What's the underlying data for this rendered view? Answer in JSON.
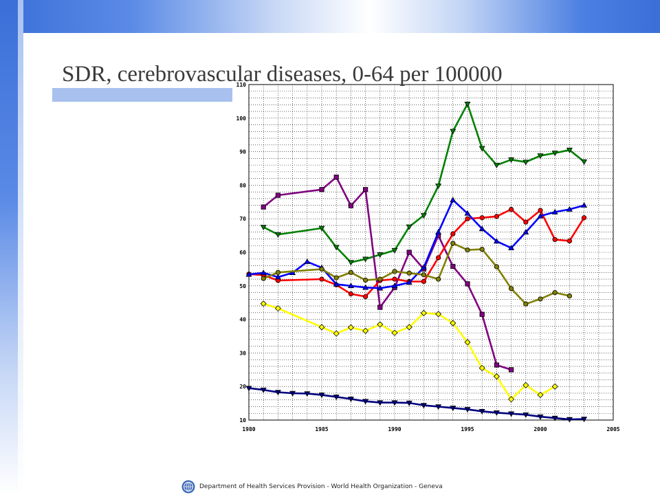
{
  "slide": {
    "title": "SDR, cerebrovascular  diseases, 0-64 per 100000",
    "footer": "Department of Health Services Provision - World Health Organization - Geneva",
    "logo_icon": "who-emblem-icon"
  },
  "chart_data": {
    "type": "line",
    "title": "",
    "xlabel": "",
    "ylabel": "",
    "xlim": [
      1980,
      2005
    ],
    "ylim": [
      10,
      110
    ],
    "x_ticks": [
      1980,
      1985,
      1990,
      1995,
      2000,
      2005
    ],
    "y_ticks": [
      10,
      20,
      30,
      40,
      50,
      60,
      70,
      80,
      90,
      100,
      110
    ],
    "grid": true,
    "legend": "none",
    "series": [
      {
        "color": "#008000",
        "marker": "triangle-down",
        "points": [
          [
            1981,
            67.5
          ],
          [
            1982,
            65.3
          ],
          [
            1985,
            67.2
          ],
          [
            1986,
            61.5
          ],
          [
            1987,
            57.0
          ],
          [
            1988,
            58.0
          ],
          [
            1989,
            59.3
          ],
          [
            1990,
            60.6
          ],
          [
            1991,
            67.6
          ],
          [
            1992,
            71.0
          ],
          [
            1993,
            79.8
          ],
          [
            1994,
            96.1
          ],
          [
            1995,
            104.2
          ],
          [
            1996,
            91.0
          ],
          [
            1997,
            86.0
          ],
          [
            1998,
            87.6
          ],
          [
            1999,
            86.9
          ],
          [
            2000,
            88.8
          ],
          [
            2001,
            89.6
          ],
          [
            2002,
            90.5
          ],
          [
            2003,
            87.0
          ]
        ]
      },
      {
        "color": "#800080",
        "marker": "square",
        "points": [
          [
            1981,
            73.5
          ],
          [
            1982,
            77.0
          ],
          [
            1985,
            78.7
          ],
          [
            1986,
            82.4
          ],
          [
            1987,
            73.9
          ],
          [
            1988,
            78.7
          ],
          [
            1989,
            43.6
          ],
          [
            1990,
            49.5
          ],
          [
            1991,
            60.0
          ],
          [
            1992,
            55.0
          ],
          [
            1993,
            65.0
          ],
          [
            1994,
            55.8
          ],
          [
            1995,
            50.6
          ],
          [
            1996,
            41.5
          ],
          [
            1997,
            26.4
          ],
          [
            1998,
            25.0
          ]
        ]
      },
      {
        "color": "#ff0000",
        "marker": "circle",
        "points": [
          [
            1980,
            53.5
          ],
          [
            1981,
            53.2
          ],
          [
            1982,
            51.6
          ],
          [
            1985,
            52.0
          ],
          [
            1986,
            50.3
          ],
          [
            1987,
            47.6
          ],
          [
            1988,
            46.8
          ],
          [
            1989,
            51.6
          ],
          [
            1990,
            52.0
          ],
          [
            1991,
            51.3
          ],
          [
            1992,
            51.3
          ],
          [
            1993,
            58.4
          ],
          [
            1994,
            65.5
          ],
          [
            1995,
            70.0
          ],
          [
            1996,
            70.3
          ],
          [
            1997,
            70.7
          ],
          [
            1998,
            72.8
          ],
          [
            1999,
            69.0
          ],
          [
            2000,
            72.5
          ],
          [
            2001,
            63.8
          ],
          [
            2002,
            63.4
          ],
          [
            2003,
            70.3
          ]
        ]
      },
      {
        "color": "#0000ff",
        "marker": "triangle-up",
        "points": [
          [
            1980,
            53.4
          ],
          [
            1981,
            53.9
          ],
          [
            1982,
            52.6
          ],
          [
            1983,
            53.9
          ],
          [
            1984,
            57.2
          ],
          [
            1985,
            55.4
          ],
          [
            1986,
            50.5
          ],
          [
            1987,
            50.0
          ],
          [
            1988,
            49.5
          ],
          [
            1989,
            49.3
          ],
          [
            1990,
            50.0
          ],
          [
            1991,
            51.0
          ],
          [
            1992,
            55.5
          ],
          [
            1993,
            66.0
          ],
          [
            1994,
            75.6
          ],
          [
            1995,
            71.6
          ],
          [
            1996,
            67.0
          ],
          [
            1997,
            63.3
          ],
          [
            1998,
            61.3
          ],
          [
            1999,
            66.0
          ],
          [
            2000,
            70.8
          ],
          [
            2001,
            72.0
          ],
          [
            2002,
            72.8
          ],
          [
            2003,
            74.0
          ]
        ]
      },
      {
        "color": "#808000",
        "marker": "circle",
        "points": [
          [
            1981,
            52.2
          ],
          [
            1982,
            54.0
          ],
          [
            1985,
            55.0
          ],
          [
            1986,
            52.4
          ],
          [
            1987,
            54.0
          ],
          [
            1988,
            51.7
          ],
          [
            1989,
            52.0
          ],
          [
            1990,
            54.3
          ],
          [
            1991,
            53.8
          ],
          [
            1992,
            53.3
          ],
          [
            1993,
            52.0
          ],
          [
            1994,
            62.7
          ],
          [
            1995,
            60.7
          ],
          [
            1996,
            60.9
          ],
          [
            1997,
            55.7
          ],
          [
            1998,
            49.2
          ],
          [
            1999,
            44.6
          ],
          [
            2000,
            46.1
          ],
          [
            2001,
            48.0
          ],
          [
            2002,
            47.0
          ]
        ]
      },
      {
        "color": "#ffff00",
        "marker": "diamond",
        "points": [
          [
            1981,
            44.7
          ],
          [
            1982,
            43.3
          ],
          [
            1985,
            37.7
          ],
          [
            1986,
            35.8
          ],
          [
            1987,
            37.6
          ],
          [
            1988,
            36.6
          ],
          [
            1989,
            38.5
          ],
          [
            1990,
            36.0
          ],
          [
            1991,
            37.7
          ],
          [
            1992,
            41.9
          ],
          [
            1993,
            41.6
          ],
          [
            1994,
            38.9
          ],
          [
            1995,
            33.2
          ],
          [
            1996,
            25.5
          ],
          [
            1997,
            23.0
          ],
          [
            1998,
            16.2
          ],
          [
            1999,
            20.4
          ],
          [
            2000,
            17.5
          ],
          [
            2001,
            20.0
          ]
        ]
      },
      {
        "color": "#000080",
        "marker": "triangle-down",
        "points": [
          [
            1980,
            19.5
          ],
          [
            1981,
            19.0
          ],
          [
            1982,
            18.3
          ],
          [
            1983,
            18.0
          ],
          [
            1984,
            17.9
          ],
          [
            1985,
            17.5
          ],
          [
            1986,
            16.9
          ],
          [
            1987,
            16.3
          ],
          [
            1988,
            15.6
          ],
          [
            1989,
            15.2
          ],
          [
            1990,
            15.2
          ],
          [
            1991,
            15.1
          ],
          [
            1992,
            14.4
          ],
          [
            1993,
            14.0
          ],
          [
            1994,
            13.6
          ],
          [
            1995,
            13.2
          ],
          [
            1996,
            12.6
          ],
          [
            1997,
            12.2
          ],
          [
            1998,
            11.9
          ],
          [
            1999,
            11.6
          ],
          [
            2000,
            11.0
          ],
          [
            2001,
            10.6
          ],
          [
            2002,
            10.2
          ],
          [
            2003,
            10.3
          ]
        ]
      }
    ]
  }
}
